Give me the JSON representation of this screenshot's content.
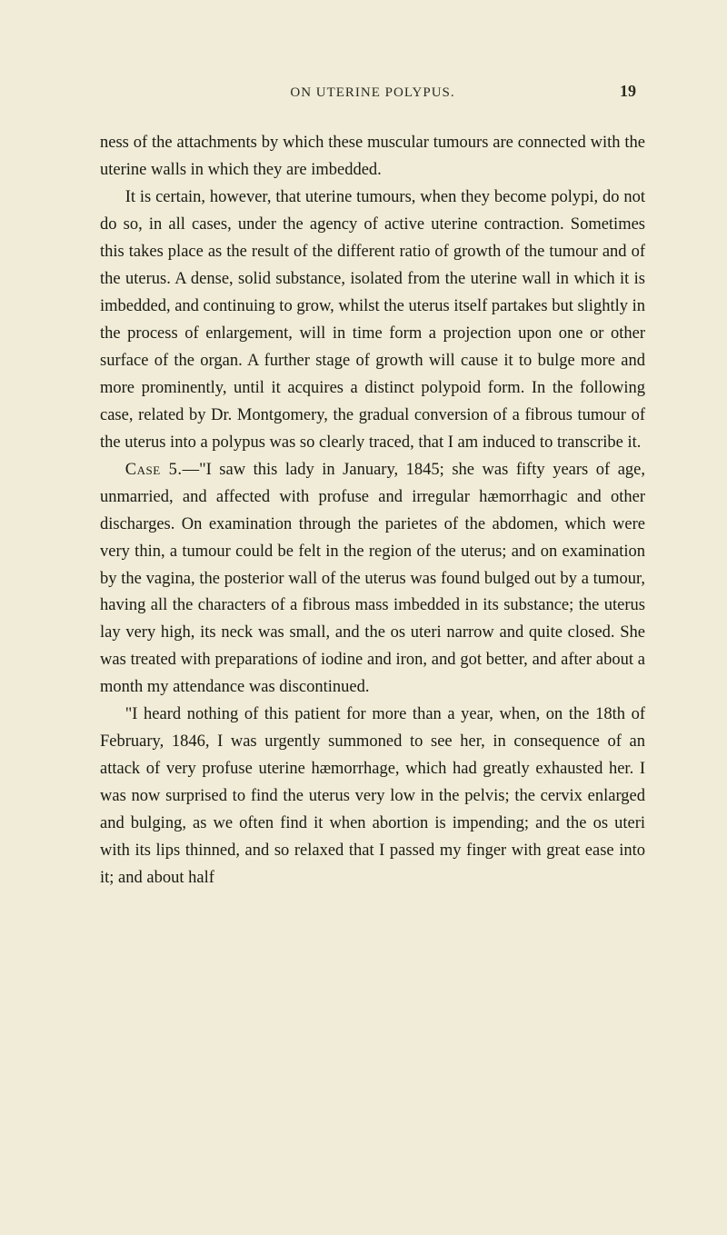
{
  "background_color": "#f0ecd8",
  "text_color": "#1a1a12",
  "font_family": "Georgia, 'Times New Roman', serif",
  "body_fontsize": 18.5,
  "line_height": 1.62,
  "header": {
    "title": "ON UTERINE POLYPUS.",
    "page_number": "19",
    "title_fontsize": 15,
    "number_fontsize": 18
  },
  "paragraphs": {
    "p1": "ness of the attachments by which these muscular tumours are connected with the uterine walls in which they are imbedded.",
    "p2": "It is certain, however, that uterine tumours, when they become polypi, do not do so, in all cases, under the agency of active uterine contraction. Sometimes this takes place as the result of the different ratio of growth of the tumour and of the uterus. A dense, solid substance, isolated from the uterine wall in which it is imbedded, and continuing to grow, whilst the uterus itself partakes but slightly in the process of enlargement, will in time form a projection upon one or other surface of the organ. A further stage of growth will cause it to bulge more and more prominently, until it acquires a distinct polypoid form. In the following case, related by Dr. Montgomery, the gradual conversion of a fibrous tumour of the uterus into a polypus was so clearly traced, that I am induced to transcribe it.",
    "p3_label": "Case 5.",
    "p3": "—\"I saw this lady in January, 1845; she was fifty years of age, unmarried, and affected with profuse and irregular hæmorrhagic and other discharges. On examination through the parietes of the abdomen, which were very thin, a tumour could be felt in the region of the uterus; and on examination by the vagina, the posterior wall of the uterus was found bulged out by a tumour, having all the characters of a fibrous mass imbedded in its substance; the uterus lay very high, its neck was small, and the os uteri narrow and quite closed. She was treated with preparations of iodine and iron, and got better, and after about a month my attendance was discontinued.",
    "p4": "\"I heard nothing of this patient for more than a year, when, on the 18th of February, 1846, I was urgently summoned to see her, in consequence of an attack of very profuse uterine hæmorrhage, which had greatly exhausted her. I was now surprised to find the uterus very low in the pelvis; the cervix enlarged and bulging, as we often find it when abortion is impending; and the os uteri with its lips thinned, and so relaxed that I passed my finger with great ease into it; and about half"
  }
}
